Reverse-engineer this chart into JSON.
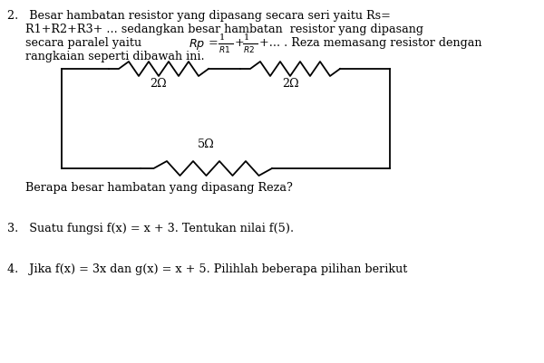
{
  "bg_color": "#ffffff",
  "text_color": "#000000",
  "line_color": "#000000",
  "fig_width": 6.0,
  "fig_height": 4.01,
  "dpi": 100,
  "label_2ohm_left": "2Ω",
  "label_2ohm_right": "2Ω",
  "label_5ohm": "5Ω",
  "font_size": 9.2,
  "font_family": "DejaVu Serif",
  "line1": "2.   Besar hambatan resistor yang dipasang secara seri yaitu Rs=",
  "line2": "     R1+R2+R3+ ... sedangkan besar hambatan  resistor yang dipasang",
  "line3_pre": "     secara paralel yaitu ",
  "line3_post": "+... . Reza memasang resistor dengan",
  "line4": "     rangkaian seperti dibawah ini.",
  "q_text": "     Berapa besar hambatan yang dipasang Reza?",
  "q3_text": "3.   Suatu fungsi f(x) = x + 3. Tentukan nilai f(5).",
  "q4_text": "4.   Jika f(x) = 3x dan g(x) = x + 5. Pilihlah beberapa pilihan berikut"
}
